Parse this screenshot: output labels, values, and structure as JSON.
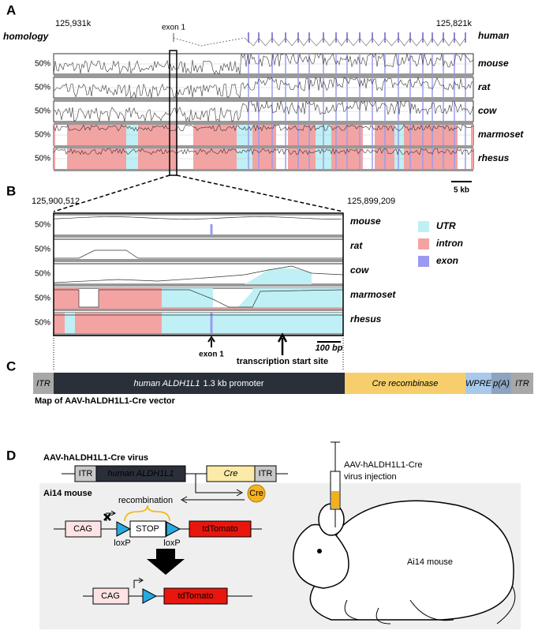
{
  "panel_a": {
    "label": "A",
    "left_coord": "125,931k",
    "right_coord": "125,821k",
    "homology": "homology",
    "exon_label": "exon 1",
    "reference": "human",
    "tracks": [
      "mouse",
      "rat",
      "cow",
      "marmoset",
      "rhesus"
    ],
    "percent": "50%",
    "scale": "5 kb"
  },
  "panel_b": {
    "label": "B",
    "left_coord": "125,900,512",
    "right_coord": "125,899,209",
    "tracks": [
      "mouse",
      "rat",
      "cow",
      "marmoset",
      "rhesus"
    ],
    "percent": "50%",
    "legend": [
      "UTR",
      "intron",
      "exon"
    ],
    "exon_label": "exon 1",
    "tss_label": "transcription start site",
    "scale": "100 bp"
  },
  "panel_c": {
    "label": "C",
    "segments": [
      "ITR",
      "human ALDH1L1",
      "1.3 kb promoter",
      "Cre recombinase",
      "WPRE",
      "p(A)",
      "ITR"
    ],
    "caption": "Map of AAV-hALDH1L1-Cre vector"
  },
  "panel_d": {
    "label": "D",
    "virus": "AAV-hALDH1L1-Cre virus",
    "vector": [
      "ITR",
      "human ALDH1L1",
      "Cre",
      "ITR"
    ],
    "mouse_label": "Ai14 mouse",
    "recombination": "recombination",
    "cre": "Cre",
    "cag": "CAG",
    "stop": "STOP",
    "loxp": "loxP",
    "tdtomato": "tdTomato",
    "injection": [
      "AAV-hALDH1L1-Cre",
      "virus injection"
    ],
    "mouse_name": "Ai14 mouse"
  }
}
